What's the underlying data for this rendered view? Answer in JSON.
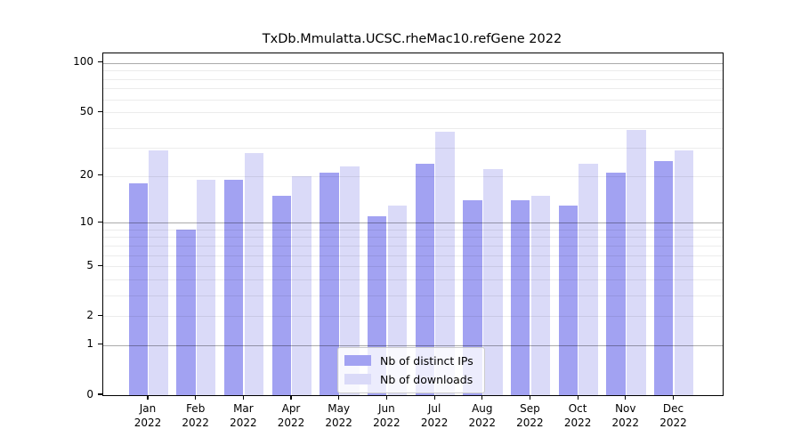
{
  "figure": {
    "background": "#ffffff"
  },
  "chart_data": {
    "type": "bar",
    "title": "TxDb.Mmulatta.UCSC.rheMac10.refGene 2022",
    "categories": [
      "Jan",
      "Feb",
      "Mar",
      "Apr",
      "May",
      "Jun",
      "Jul",
      "Aug",
      "Sep",
      "Oct",
      "Nov",
      "Dec"
    ],
    "year_label": "2022",
    "series": [
      {
        "name": "Nb of distinct IPs",
        "color": "#a2a2f2",
        "values": [
          18,
          9,
          19,
          15,
          21,
          11,
          24,
          14,
          14,
          13,
          21,
          25
        ]
      },
      {
        "name": "Nb of downloads",
        "color": "#dadaf8",
        "values": [
          29,
          19,
          28,
          20,
          23,
          13,
          38,
          22,
          15,
          24,
          39,
          29
        ]
      }
    ],
    "y_axis": {
      "scale": "log10(value+1)",
      "ticks": [
        100,
        50,
        20,
        10,
        5,
        2,
        1,
        0
      ],
      "major_gridlines": [
        1,
        10,
        100
      ],
      "minor_gridlines": [
        2,
        3,
        4,
        5,
        6,
        7,
        8,
        9,
        20,
        30,
        40,
        50,
        60,
        70,
        80,
        90
      ],
      "range_top": 116
    },
    "legend_position": "bottom-center",
    "grid": true
  },
  "colors": {
    "axis": "#000000",
    "major_gridline": "rgba(0,0,0,0.33)",
    "minor_gridline": "rgba(0,0,0,0.075)",
    "legend_border": "#cccccc",
    "legend_background": "rgba(255,255,255,0.8)"
  }
}
